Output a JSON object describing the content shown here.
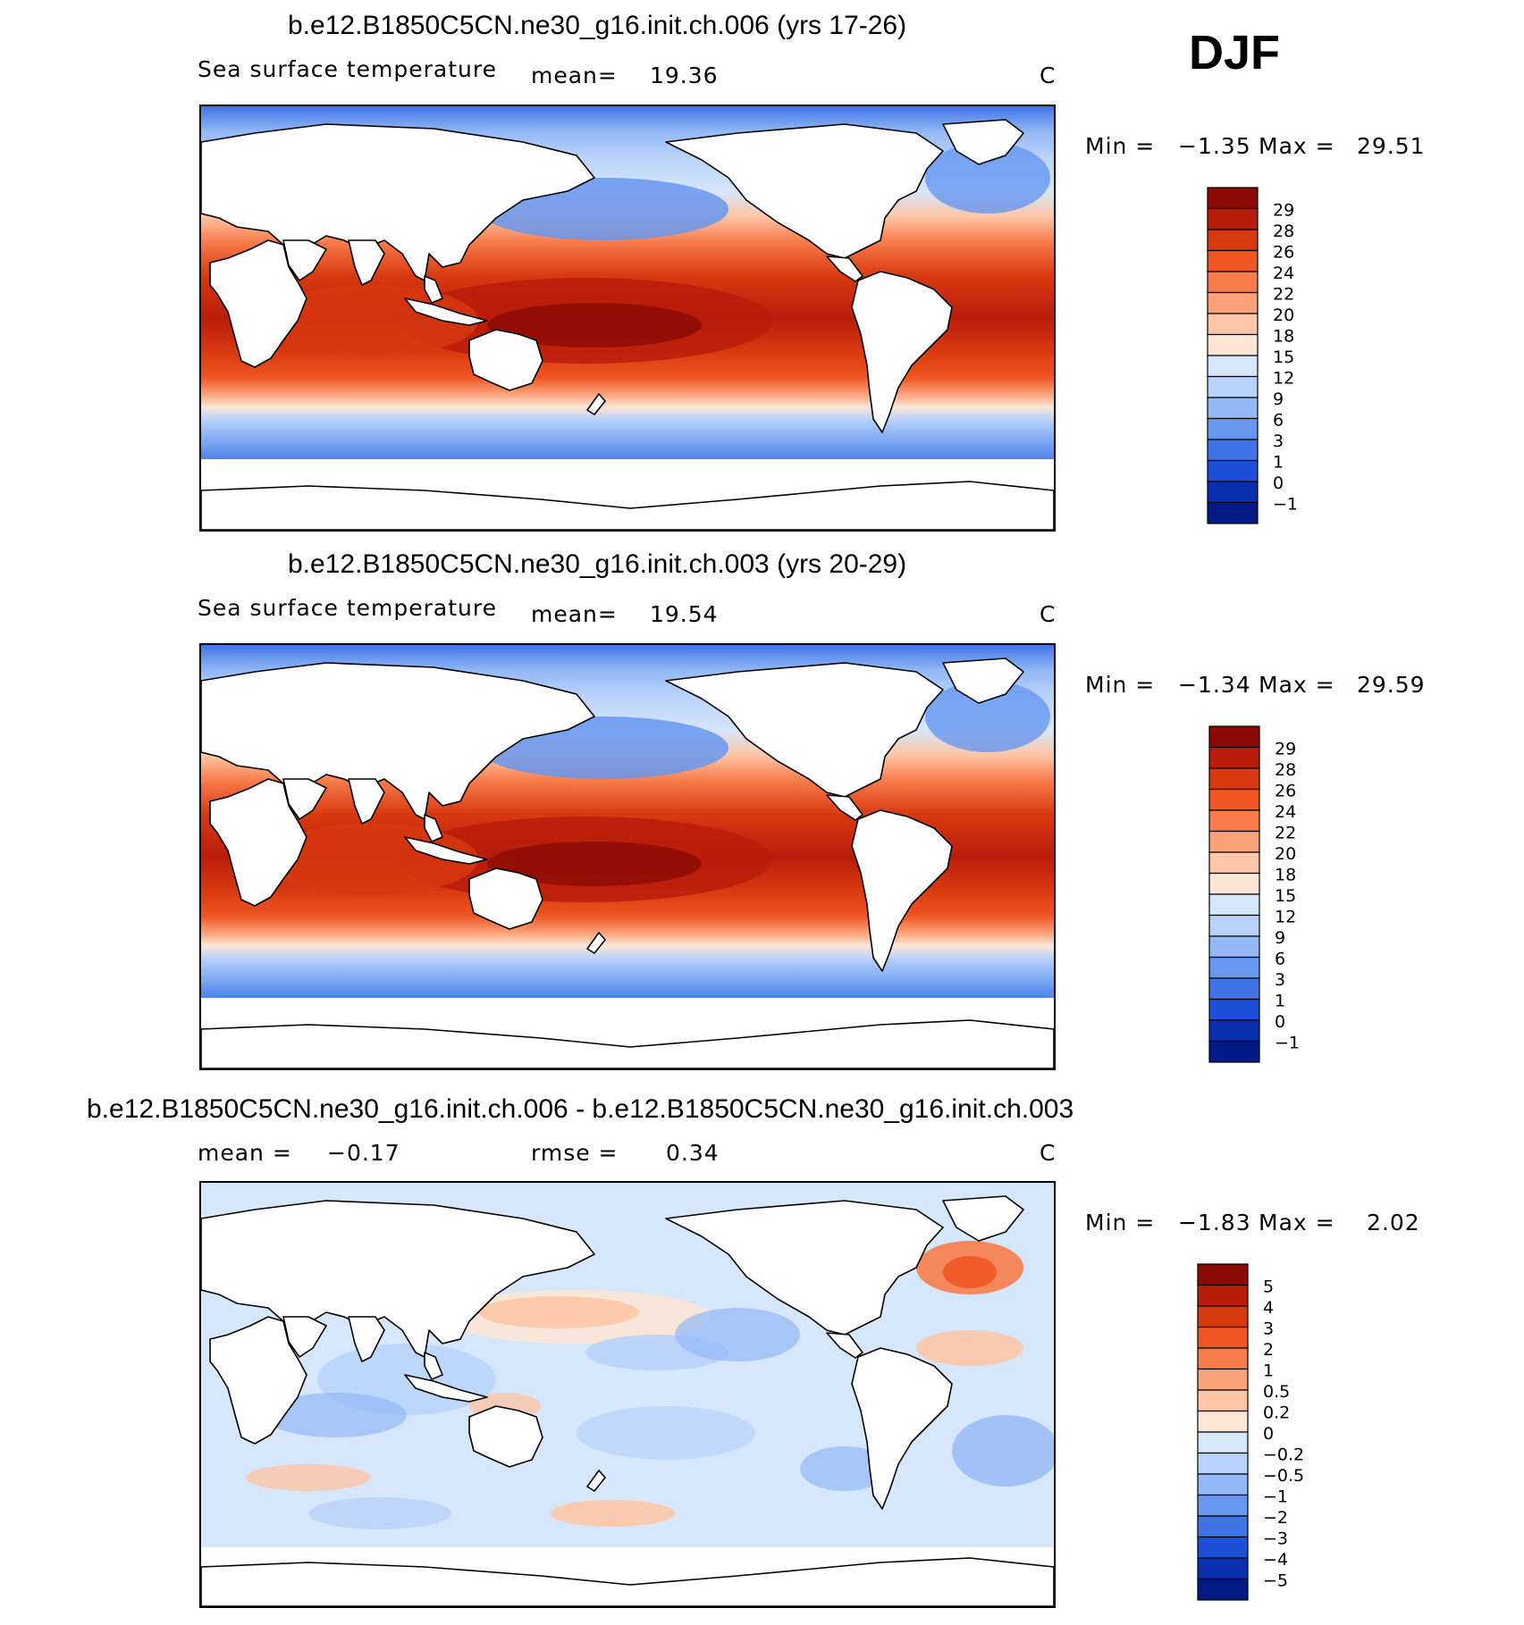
{
  "header": {
    "season": "DJF"
  },
  "panels": [
    {
      "title": "b.e12.B1850C5CN.ne30_g16.init.ch.006 (yrs 17-26)",
      "left_label": "Sea surface temperature",
      "mean_label": "mean=",
      "mean_value": "19.36",
      "units": "C",
      "min_label": "Min =",
      "min_value": "−1.35",
      "max_label": "Max =",
      "max_value": "29.51",
      "kind": "sst",
      "colorbar": {
        "labels": [
          "29",
          "28",
          "26",
          "24",
          "22",
          "20",
          "18",
          "15",
          "12",
          "9",
          "6",
          "3",
          "1",
          "0",
          "−1"
        ],
        "colors": [
          "#8c0a04",
          "#b81d0a",
          "#d83a10",
          "#ef5623",
          "#f87c4b",
          "#fca27a",
          "#fdc6a6",
          "#fde6d6",
          "#d6e6fb",
          "#b9d2fa",
          "#93b8f6",
          "#6797ef",
          "#3f74e7",
          "#1d4fd8",
          "#0a2fae",
          "#001a86"
        ]
      },
      "chart_data": {
        "type": "heatmap",
        "title": "b.e12.B1850C5CN.ne30_g16.init.ch.006 (yrs 17-26)",
        "variable": "Sea surface temperature",
        "units": "C",
        "mean": 19.36,
        "min": -1.35,
        "max": 29.51,
        "levels": [
          -1,
          0,
          1,
          3,
          6,
          9,
          12,
          15,
          18,
          20,
          22,
          24,
          26,
          28,
          29
        ]
      }
    },
    {
      "title": "b.e12.B1850C5CN.ne30_g16.init.ch.003 (yrs 20-29)",
      "left_label": "Sea surface temperature",
      "mean_label": "mean=",
      "mean_value": "19.54",
      "units": "C",
      "min_label": "Min =",
      "min_value": "−1.34",
      "max_label": "Max =",
      "max_value": "29.59",
      "kind": "sst",
      "colorbar": {
        "labels": [
          "29",
          "28",
          "26",
          "24",
          "22",
          "20",
          "18",
          "15",
          "12",
          "9",
          "6",
          "3",
          "1",
          "0",
          "−1"
        ],
        "colors": [
          "#8c0a04",
          "#b81d0a",
          "#d83a10",
          "#ef5623",
          "#f87c4b",
          "#fca27a",
          "#fdc6a6",
          "#fde6d6",
          "#d6e6fb",
          "#b9d2fa",
          "#93b8f6",
          "#6797ef",
          "#3f74e7",
          "#1d4fd8",
          "#0a2fae",
          "#001a86"
        ]
      },
      "chart_data": {
        "type": "heatmap",
        "title": "b.e12.B1850C5CN.ne30_g16.init.ch.003 (yrs 20-29)",
        "variable": "Sea surface temperature",
        "units": "C",
        "mean": 19.54,
        "min": -1.34,
        "max": 29.59,
        "levels": [
          -1,
          0,
          1,
          3,
          6,
          9,
          12,
          15,
          18,
          20,
          22,
          24,
          26,
          28,
          29
        ]
      }
    },
    {
      "title": "b.e12.B1850C5CN.ne30_g16.init.ch.006 - b.e12.B1850C5CN.ne30_g16.init.ch.003",
      "mean_label": "mean =",
      "mean_value": "−0.17",
      "rmse_label": "rmse =",
      "rmse_value": "0.34",
      "units": "C",
      "min_label": "Min =",
      "min_value": "−1.83",
      "max_label": "Max =",
      "max_value": "2.02",
      "kind": "diff",
      "colorbar": {
        "labels": [
          "5",
          "4",
          "3",
          "2",
          "1",
          "0.5",
          "0.2",
          "0",
          "−0.2",
          "−0.5",
          "−1",
          "−2",
          "−3",
          "−4",
          "−5"
        ],
        "colors": [
          "#8c0a04",
          "#b81d0a",
          "#d83a10",
          "#ef5623",
          "#f87c4b",
          "#fca27a",
          "#fdc6a6",
          "#fde6d6",
          "#d6e6fb",
          "#b9d2fa",
          "#93b8f6",
          "#6797ef",
          "#3f74e7",
          "#1d4fd8",
          "#0a2fae",
          "#001a86"
        ]
      },
      "chart_data": {
        "type": "heatmap",
        "title": "b.e12.B1850C5CN.ne30_g16.init.ch.006 - b.e12.B1850C5CN.ne30_g16.init.ch.003",
        "units": "C",
        "mean": -0.17,
        "rmse": 0.34,
        "min": -1.83,
        "max": 2.02,
        "levels": [
          -5,
          -4,
          -3,
          -2,
          -1,
          -0.5,
          -0.2,
          0,
          0.2,
          0.5,
          1,
          2,
          3,
          4,
          5
        ]
      }
    }
  ]
}
